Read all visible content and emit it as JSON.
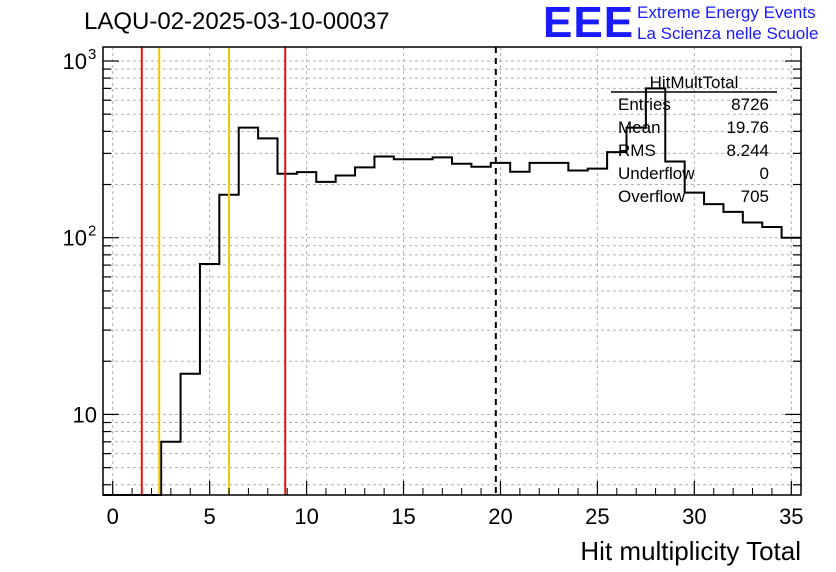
{
  "title": "LAQU-02-2025-03-10-00037",
  "logo": {
    "mark": "EEE",
    "line1": "Extreme Energy Events",
    "line2": "La Scienza nelle Scuole",
    "color": "#1a1aff"
  },
  "stats": {
    "name": "HitMultTotal",
    "rows": [
      {
        "label": "Entries",
        "value": "8726"
      },
      {
        "label": "Mean",
        "value": "19.76"
      },
      {
        "label": "RMS",
        "value": "8.244"
      },
      {
        "label": "Underflow",
        "value": "0"
      },
      {
        "label": "Overflow",
        "value": "705"
      }
    ]
  },
  "chart_data": {
    "type": "histogram",
    "title": "LAQU-02-2025-03-10-00037",
    "xlabel": "Hit multiplicity Total",
    "ylabel": "",
    "yscale": "log",
    "xlim": [
      -0.5,
      35.5
    ],
    "ylim": [
      3.5,
      1200
    ],
    "x_ticks": [
      0,
      5,
      10,
      15,
      20,
      25,
      30,
      35
    ],
    "y_tick_labels": [
      {
        "value": 10,
        "label": "10"
      },
      {
        "value": 100,
        "label": "10",
        "exp": "2"
      },
      {
        "value": 1000,
        "label": "10",
        "exp": "3"
      }
    ],
    "grid": true,
    "bins": [
      {
        "x0": -0.5,
        "x1": 0.5,
        "y": 0
      },
      {
        "x0": 0.5,
        "x1": 1.5,
        "y": 0
      },
      {
        "x0": 1.5,
        "x1": 2.5,
        "y": 0
      },
      {
        "x0": 2.5,
        "x1": 3.5,
        "y": 7
      },
      {
        "x0": 3.5,
        "x1": 4.5,
        "y": 17
      },
      {
        "x0": 4.5,
        "x1": 5.5,
        "y": 71
      },
      {
        "x0": 5.5,
        "x1": 6.5,
        "y": 175
      },
      {
        "x0": 6.5,
        "x1": 7.5,
        "y": 420
      },
      {
        "x0": 7.5,
        "x1": 8.5,
        "y": 365
      },
      {
        "x0": 8.5,
        "x1": 9.5,
        "y": 230
      },
      {
        "x0": 9.5,
        "x1": 10.5,
        "y": 235
      },
      {
        "x0": 10.5,
        "x1": 11.5,
        "y": 207
      },
      {
        "x0": 11.5,
        "x1": 12.5,
        "y": 225
      },
      {
        "x0": 12.5,
        "x1": 13.5,
        "y": 250
      },
      {
        "x0": 13.5,
        "x1": 14.5,
        "y": 288
      },
      {
        "x0": 14.5,
        "x1": 15.5,
        "y": 278
      },
      {
        "x0": 15.5,
        "x1": 16.5,
        "y": 278
      },
      {
        "x0": 16.5,
        "x1": 17.5,
        "y": 285
      },
      {
        "x0": 17.5,
        "x1": 18.5,
        "y": 262
      },
      {
        "x0": 18.5,
        "x1": 19.5,
        "y": 252
      },
      {
        "x0": 19.5,
        "x1": 20.5,
        "y": 265
      },
      {
        "x0": 20.5,
        "x1": 21.5,
        "y": 236
      },
      {
        "x0": 21.5,
        "x1": 22.5,
        "y": 265
      },
      {
        "x0": 22.5,
        "x1": 23.5,
        "y": 265
      },
      {
        "x0": 23.5,
        "x1": 24.5,
        "y": 240
      },
      {
        "x0": 24.5,
        "x1": 25.5,
        "y": 246
      },
      {
        "x0": 25.5,
        "x1": 26.5,
        "y": 305
      },
      {
        "x0": 26.5,
        "x1": 27.5,
        "y": 420
      },
      {
        "x0": 27.5,
        "x1": 28.5,
        "y": 700
      },
      {
        "x0": 28.5,
        "x1": 29.5,
        "y": 270
      },
      {
        "x0": 29.5,
        "x1": 30.5,
        "y": 180
      },
      {
        "x0": 30.5,
        "x1": 31.5,
        "y": 155
      },
      {
        "x0": 31.5,
        "x1": 32.5,
        "y": 140
      },
      {
        "x0": 32.5,
        "x1": 33.5,
        "y": 122
      },
      {
        "x0": 33.5,
        "x1": 34.5,
        "y": 115
      },
      {
        "x0": 34.5,
        "x1": 35.5,
        "y": 100
      }
    ],
    "vertical_lines": [
      {
        "x": 1.5,
        "color": "#e8120c",
        "style": "solid"
      },
      {
        "x": 2.4,
        "color": "#f0c800",
        "style": "solid"
      },
      {
        "x": 6.0,
        "color": "#f0c800",
        "style": "solid"
      },
      {
        "x": 8.9,
        "color": "#e8120c",
        "style": "solid"
      },
      {
        "x": 19.76,
        "color": "#000000",
        "style": "dashed"
      }
    ]
  }
}
